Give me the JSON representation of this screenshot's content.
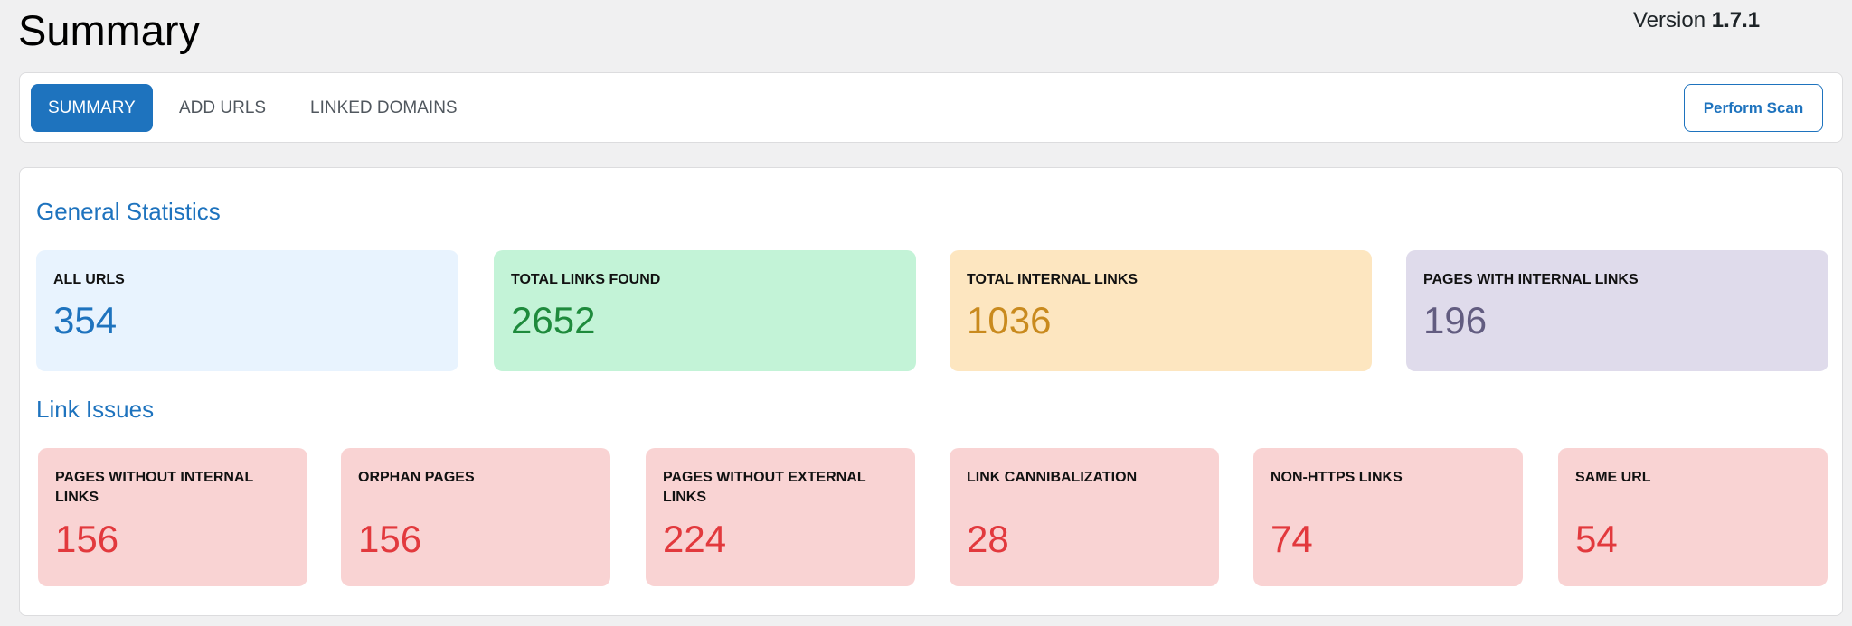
{
  "header": {
    "title": "Summary",
    "version_label": "Version",
    "version": "1.7.1"
  },
  "tabs": [
    "SUMMARY",
    "ADD URLS",
    "LINKED DOMAINS"
  ],
  "action": "Perform Scan",
  "general": {
    "heading": "General Statistics",
    "cards": [
      {
        "label": "ALL URLS",
        "value": 354
      },
      {
        "label": "TOTAL LINKS FOUND",
        "value": 2652
      },
      {
        "label": "TOTAL INTERNAL LINKS",
        "value": 1036
      },
      {
        "label": "PAGES WITH INTERNAL LINKS",
        "value": 196
      }
    ]
  },
  "issues": {
    "heading": "Link Issues",
    "cards": [
      {
        "label": "PAGES WITHOUT INTERNAL LINKS",
        "value": 156
      },
      {
        "label": "ORPHAN PAGES",
        "value": 156
      },
      {
        "label": "PAGES WITHOUT EXTERNAL LINKS",
        "value": 224
      },
      {
        "label": "LINK CANNIBALIZATION",
        "value": 28
      },
      {
        "label": "NON-HTTPS LINKS",
        "value": 74
      },
      {
        "label": "SAME URL",
        "value": 54
      }
    ]
  }
}
